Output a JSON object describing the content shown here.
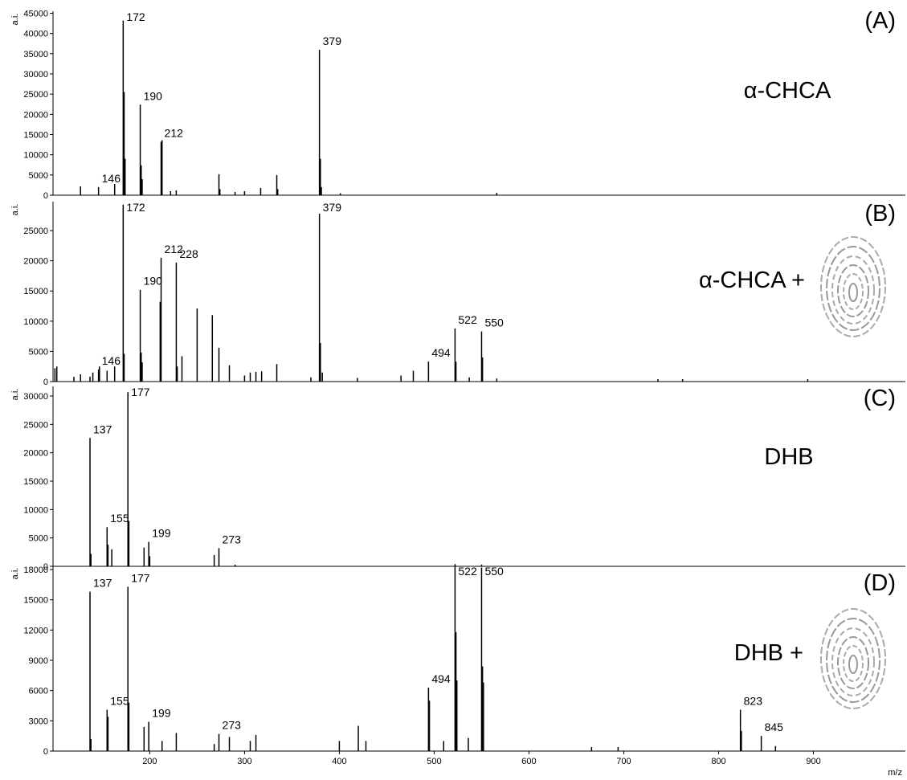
{
  "chart_data": [
    {
      "type": "stem",
      "ylabel": "a.i.",
      "panel_label": "(A)",
      "matrix_label": "α-CHCA",
      "xlim": [
        98,
        997
      ],
      "ylim": [
        0,
        45500
      ],
      "yticks": [
        0,
        5000,
        10000,
        15000,
        20000,
        25000,
        30000,
        35000,
        40000,
        45000
      ],
      "color": "#000000",
      "x": [
        127,
        146,
        163,
        172,
        173,
        174,
        190,
        191,
        192,
        212,
        213,
        222,
        228,
        273,
        274,
        290,
        300,
        317,
        334,
        335,
        379,
        380,
        381,
        401,
        566
      ],
      "values": [
        2200,
        2000,
        2800,
        43200,
        25500,
        9000,
        22400,
        7400,
        4000,
        13200,
        13600,
        1000,
        1200,
        5200,
        1500,
        800,
        1000,
        1800,
        5000,
        1500,
        36000,
        9000,
        2000,
        500,
        600
      ],
      "peak_labels": [
        null,
        "146",
        null,
        "172",
        null,
        null,
        "190",
        null,
        null,
        "212",
        null,
        null,
        null,
        null,
        null,
        null,
        null,
        null,
        null,
        null,
        "379",
        null,
        null,
        null,
        null
      ]
    },
    {
      "type": "stem",
      "ylabel": "a.i.",
      "panel_label": "(B)",
      "matrix_label": "α-CHCA +",
      "xlim": [
        98,
        997
      ],
      "ylim": [
        0,
        29800
      ],
      "yticks": [
        0,
        5000,
        10000,
        15000,
        20000,
        25000
      ],
      "color": "#000000",
      "x": [
        100,
        102,
        120,
        127,
        137,
        140,
        146,
        147,
        155,
        163,
        172,
        173,
        190,
        191,
        192,
        211,
        212,
        228,
        229,
        234,
        250,
        266,
        273,
        284,
        300,
        306,
        312,
        318,
        334,
        370,
        379,
        380,
        382,
        419,
        465,
        478,
        494,
        522,
        523,
        537,
        550,
        551,
        566,
        736,
        762,
        894
      ],
      "values": [
        2200,
        2500,
        800,
        1200,
        800,
        1500,
        2000,
        2500,
        1800,
        2500,
        29300,
        4600,
        15200,
        4800,
        3200,
        13200,
        20500,
        19700,
        2500,
        4200,
        12100,
        11000,
        5600,
        2700,
        1000,
        1500,
        1600,
        1700,
        2900,
        700,
        27800,
        6400,
        1500,
        600,
        1000,
        1800,
        3300,
        8800,
        3300,
        700,
        8300,
        4000,
        500,
        400,
        400,
        400
      ],
      "peak_labels": [
        null,
        null,
        null,
        null,
        null,
        null,
        "146",
        null,
        null,
        null,
        "172",
        null,
        "190",
        null,
        null,
        null,
        "212",
        "228",
        null,
        null,
        null,
        null,
        null,
        null,
        null,
        null,
        null,
        null,
        null,
        null,
        "379",
        null,
        null,
        null,
        null,
        null,
        "494",
        "522",
        null,
        null,
        "550",
        null,
        null,
        null,
        null,
        null
      ]
    },
    {
      "type": "stem",
      "ylabel": "a.i.",
      "panel_label": "(C)",
      "matrix_label": "DHB",
      "xlim": [
        98,
        997
      ],
      "ylim": [
        0,
        31700
      ],
      "yticks": [
        0,
        5000,
        10000,
        15000,
        20000,
        25000,
        30000
      ],
      "color": "#000000",
      "x": [
        137,
        138,
        155,
        156,
        160,
        177,
        178,
        194,
        199,
        200,
        268,
        273,
        290,
        522,
        550
      ],
      "values": [
        22600,
        2200,
        6900,
        3800,
        3000,
        30700,
        8000,
        3300,
        4300,
        1800,
        2000,
        3200,
        300,
        400,
        300
      ],
      "peak_labels": [
        "137",
        null,
        "155",
        null,
        null,
        "177",
        null,
        null,
        "199",
        null,
        null,
        "273",
        null,
        null,
        null
      ]
    },
    {
      "type": "stem",
      "ylabel": "a.i.",
      "panel_label": "(D)",
      "matrix_label": "DHB +",
      "xlabel": "m/z",
      "xlim": [
        98,
        997
      ],
      "ylim": [
        0,
        18400
      ],
      "xticks": [
        200,
        300,
        400,
        500,
        600,
        700,
        800,
        900
      ],
      "yticks": [
        0,
        3000,
        6000,
        9000,
        12000,
        15000,
        18000
      ],
      "color": "#000000",
      "x": [
        137,
        138,
        155,
        156,
        177,
        178,
        194,
        199,
        213,
        228,
        268,
        273,
        284,
        306,
        312,
        400,
        420,
        428,
        494,
        495,
        510,
        522,
        523,
        524,
        536,
        550,
        551,
        552,
        666,
        694,
        823,
        824,
        845,
        860
      ],
      "values": [
        15800,
        1200,
        4100,
        3400,
        16300,
        4800,
        2400,
        2900,
        1000,
        1800,
        700,
        1700,
        1400,
        1000,
        1600,
        1000,
        2500,
        1000,
        6300,
        5000,
        1000,
        18300,
        11800,
        7000,
        1300,
        18200,
        8400,
        6800,
        400,
        400,
        4100,
        2000,
        1500,
        500
      ],
      "peak_labels": [
        "137",
        null,
        "155",
        null,
        "177",
        null,
        null,
        "199",
        null,
        null,
        null,
        "273",
        null,
        null,
        null,
        null,
        null,
        null,
        "494",
        null,
        null,
        "522",
        null,
        null,
        null,
        "550",
        null,
        null,
        null,
        null,
        "823",
        null,
        "845",
        null
      ]
    }
  ]
}
